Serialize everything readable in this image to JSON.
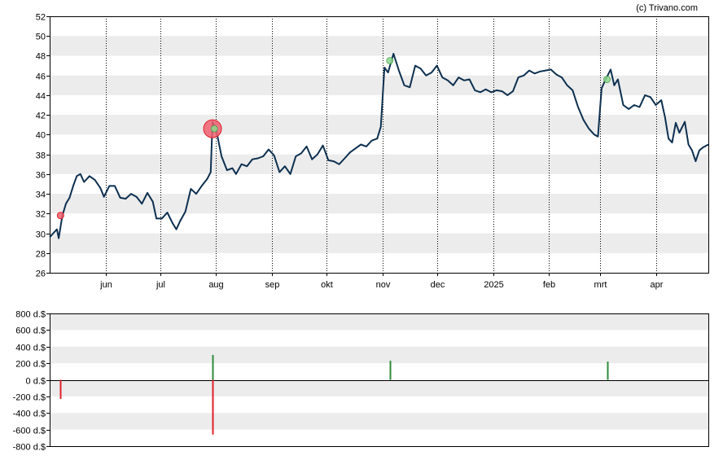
{
  "credit": "(c) Trivano.com",
  "colors": {
    "band": "#ececec",
    "price_line": "#0d3050",
    "buy": "#2e8b3a",
    "sell": "#e0202a",
    "marker_red": "#f06070",
    "marker_green": "#8fd88f"
  },
  "chart_data": [
    {
      "type": "line",
      "title": "",
      "ylim": [
        26,
        52
      ],
      "y_ticks": [
        "26",
        "28",
        "30",
        "32",
        "34",
        "36",
        "38",
        "40",
        "42",
        "44",
        "46",
        "48",
        "50",
        "52"
      ],
      "x_ticks": [
        {
          "label": "jun",
          "date": "2024-06-01"
        },
        {
          "label": "jul",
          "date": "2024-07-01"
        },
        {
          "label": "aug",
          "date": "2024-08-01"
        },
        {
          "label": "sep",
          "date": "2024-09-01"
        },
        {
          "label": "okt",
          "date": "2024-10-01"
        },
        {
          "label": "nov",
          "date": "2024-11-01"
        },
        {
          "label": "dec",
          "date": "2024-12-01"
        },
        {
          "label": "2025",
          "date": "2025-01-01"
        },
        {
          "label": "feb",
          "date": "2025-02-01"
        },
        {
          "label": "mrt",
          "date": "2025-03-01"
        },
        {
          "label": "apr",
          "date": "2025-04-01"
        }
      ],
      "x_range": [
        "2024-05-01",
        "2025-04-30"
      ],
      "series": [
        {
          "points": [
            [
              "2024-05-01",
              29.6
            ],
            [
              "2024-05-03",
              30.0
            ],
            [
              "2024-05-05",
              30.4
            ],
            [
              "2024-05-06",
              29.5
            ],
            [
              "2024-05-08",
              31.8
            ],
            [
              "2024-05-10",
              33.0
            ],
            [
              "2024-05-12",
              33.6
            ],
            [
              "2024-05-14",
              34.8
            ],
            [
              "2024-05-16",
              35.8
            ],
            [
              "2024-05-18",
              36.0
            ],
            [
              "2024-05-20",
              35.2
            ],
            [
              "2024-05-23",
              35.8
            ],
            [
              "2024-05-26",
              35.4
            ],
            [
              "2024-05-29",
              34.6
            ],
            [
              "2024-05-31",
              33.7
            ],
            [
              "2024-06-03",
              34.8
            ],
            [
              "2024-06-06",
              34.8
            ],
            [
              "2024-06-09",
              33.6
            ],
            [
              "2024-06-12",
              33.5
            ],
            [
              "2024-06-15",
              34.0
            ],
            [
              "2024-06-18",
              33.7
            ],
            [
              "2024-06-21",
              33.0
            ],
            [
              "2024-06-24",
              34.1
            ],
            [
              "2024-06-27",
              33.2
            ],
            [
              "2024-06-29",
              31.5
            ],
            [
              "2024-07-02",
              31.5
            ],
            [
              "2024-07-05",
              32.1
            ],
            [
              "2024-07-08",
              31.0
            ],
            [
              "2024-07-10",
              30.4
            ],
            [
              "2024-07-12",
              31.2
            ],
            [
              "2024-07-15",
              32.2
            ],
            [
              "2024-07-18",
              34.5
            ],
            [
              "2024-07-21",
              34.0
            ],
            [
              "2024-07-24",
              34.8
            ],
            [
              "2024-07-27",
              35.5
            ],
            [
              "2024-07-29",
              36.2
            ],
            [
              "2024-07-30",
              41.3
            ],
            [
              "2024-08-01",
              40.5
            ],
            [
              "2024-08-04",
              37.8
            ],
            [
              "2024-08-07",
              36.4
            ],
            [
              "2024-08-10",
              36.6
            ],
            [
              "2024-08-12",
              36.0
            ],
            [
              "2024-08-15",
              37.0
            ],
            [
              "2024-08-18",
              36.8
            ],
            [
              "2024-08-21",
              37.5
            ],
            [
              "2024-08-24",
              37.6
            ],
            [
              "2024-08-27",
              37.8
            ],
            [
              "2024-08-30",
              38.5
            ],
            [
              "2024-09-02",
              37.9
            ],
            [
              "2024-09-05",
              36.2
            ],
            [
              "2024-09-08",
              36.8
            ],
            [
              "2024-09-11",
              36.0
            ],
            [
              "2024-09-14",
              37.8
            ],
            [
              "2024-09-17",
              38.1
            ],
            [
              "2024-09-20",
              38.8
            ],
            [
              "2024-09-23",
              37.5
            ],
            [
              "2024-09-26",
              38.0
            ],
            [
              "2024-09-29",
              38.9
            ],
            [
              "2024-10-02",
              37.4
            ],
            [
              "2024-10-05",
              37.3
            ],
            [
              "2024-10-08",
              37.0
            ],
            [
              "2024-10-11",
              37.6
            ],
            [
              "2024-10-14",
              38.2
            ],
            [
              "2024-10-17",
              38.6
            ],
            [
              "2024-10-20",
              39.0
            ],
            [
              "2024-10-23",
              38.8
            ],
            [
              "2024-10-26",
              39.4
            ],
            [
              "2024-10-29",
              39.6
            ],
            [
              "2024-10-31",
              40.8
            ],
            [
              "2024-11-02",
              46.8
            ],
            [
              "2024-11-04",
              46.3
            ],
            [
              "2024-11-07",
              48.2
            ],
            [
              "2024-11-10",
              46.5
            ],
            [
              "2024-11-13",
              45.0
            ],
            [
              "2024-11-16",
              44.8
            ],
            [
              "2024-11-19",
              47.0
            ],
            [
              "2024-11-22",
              46.7
            ],
            [
              "2024-11-25",
              46.0
            ],
            [
              "2024-11-28",
              46.3
            ],
            [
              "2024-12-01",
              47.0
            ],
            [
              "2024-12-04",
              45.8
            ],
            [
              "2024-12-07",
              45.5
            ],
            [
              "2024-12-10",
              45.0
            ],
            [
              "2024-12-13",
              45.8
            ],
            [
              "2024-12-16",
              45.5
            ],
            [
              "2024-12-19",
              45.6
            ],
            [
              "2024-12-22",
              44.5
            ],
            [
              "2024-12-25",
              44.3
            ],
            [
              "2024-12-28",
              44.6
            ],
            [
              "2024-12-31",
              44.3
            ],
            [
              "2025-01-03",
              44.5
            ],
            [
              "2025-01-06",
              44.4
            ],
            [
              "2025-01-09",
              44.0
            ],
            [
              "2025-01-12",
              44.4
            ],
            [
              "2025-01-15",
              45.8
            ],
            [
              "2025-01-18",
              46.0
            ],
            [
              "2025-01-21",
              46.5
            ],
            [
              "2025-01-24",
              46.2
            ],
            [
              "2025-01-27",
              46.4
            ],
            [
              "2025-01-30",
              46.5
            ],
            [
              "2025-02-02",
              46.6
            ],
            [
              "2025-02-05",
              46.1
            ],
            [
              "2025-02-08",
              45.8
            ],
            [
              "2025-02-11",
              45.0
            ],
            [
              "2025-02-14",
              44.5
            ],
            [
              "2025-02-17",
              42.8
            ],
            [
              "2025-02-20",
              41.5
            ],
            [
              "2025-02-23",
              40.6
            ],
            [
              "2025-02-26",
              40.0
            ],
            [
              "2025-02-28",
              39.8
            ],
            [
              "2025-03-02",
              44.7
            ],
            [
              "2025-03-04",
              45.5
            ],
            [
              "2025-03-07",
              46.6
            ],
            [
              "2025-03-09",
              45.0
            ],
            [
              "2025-03-11",
              45.6
            ],
            [
              "2025-03-14",
              43.0
            ],
            [
              "2025-03-17",
              42.6
            ],
            [
              "2025-03-20",
              43.0
            ],
            [
              "2025-03-23",
              42.8
            ],
            [
              "2025-03-26",
              44.0
            ],
            [
              "2025-03-29",
              43.8
            ],
            [
              "2025-04-01",
              43.0
            ],
            [
              "2025-04-04",
              43.5
            ],
            [
              "2025-04-06",
              41.8
            ],
            [
              "2025-04-08",
              39.6
            ],
            [
              "2025-04-10",
              39.2
            ],
            [
              "2025-04-12",
              41.2
            ],
            [
              "2025-04-14",
              40.2
            ],
            [
              "2025-04-17",
              41.3
            ],
            [
              "2025-04-19",
              39.0
            ],
            [
              "2025-04-21",
              38.4
            ],
            [
              "2025-04-23",
              37.3
            ],
            [
              "2025-04-25",
              38.4
            ],
            [
              "2025-04-27",
              38.7
            ],
            [
              "2025-04-30",
              39.0
            ]
          ]
        }
      ],
      "markers": [
        {
          "date": "2024-05-07",
          "value": 31.8,
          "kind": "sell",
          "size": "small"
        },
        {
          "date": "2024-07-30",
          "value": 40.6,
          "kind": "sell",
          "size": "large"
        },
        {
          "date": "2024-07-31",
          "value": 40.6,
          "kind": "buy",
          "size": "small"
        },
        {
          "date": "2024-11-05",
          "value": 47.5,
          "kind": "buy",
          "size": "small"
        },
        {
          "date": "2025-03-05",
          "value": 45.6,
          "kind": "buy",
          "size": "small"
        }
      ]
    },
    {
      "type": "bar",
      "title": "",
      "ylim": [
        -800,
        800
      ],
      "y_ticks": [
        "800 d.$",
        "600 d.$",
        "400 d.$",
        "200 d.$",
        "0 d.$",
        "-200 d.$",
        "-400 d.$",
        "-600 d.$",
        "-800 d.$"
      ],
      "x_range": [
        "2024-05-01",
        "2025-04-30"
      ],
      "bars": [
        {
          "date": "2024-05-07",
          "value": -230,
          "kind": "sell"
        },
        {
          "date": "2024-07-30",
          "value": 300,
          "kind": "buy"
        },
        {
          "date": "2024-07-30",
          "value": -660,
          "kind": "sell"
        },
        {
          "date": "2024-11-05",
          "value": 230,
          "kind": "buy"
        },
        {
          "date": "2025-03-05",
          "value": 220,
          "kind": "buy"
        }
      ]
    }
  ]
}
